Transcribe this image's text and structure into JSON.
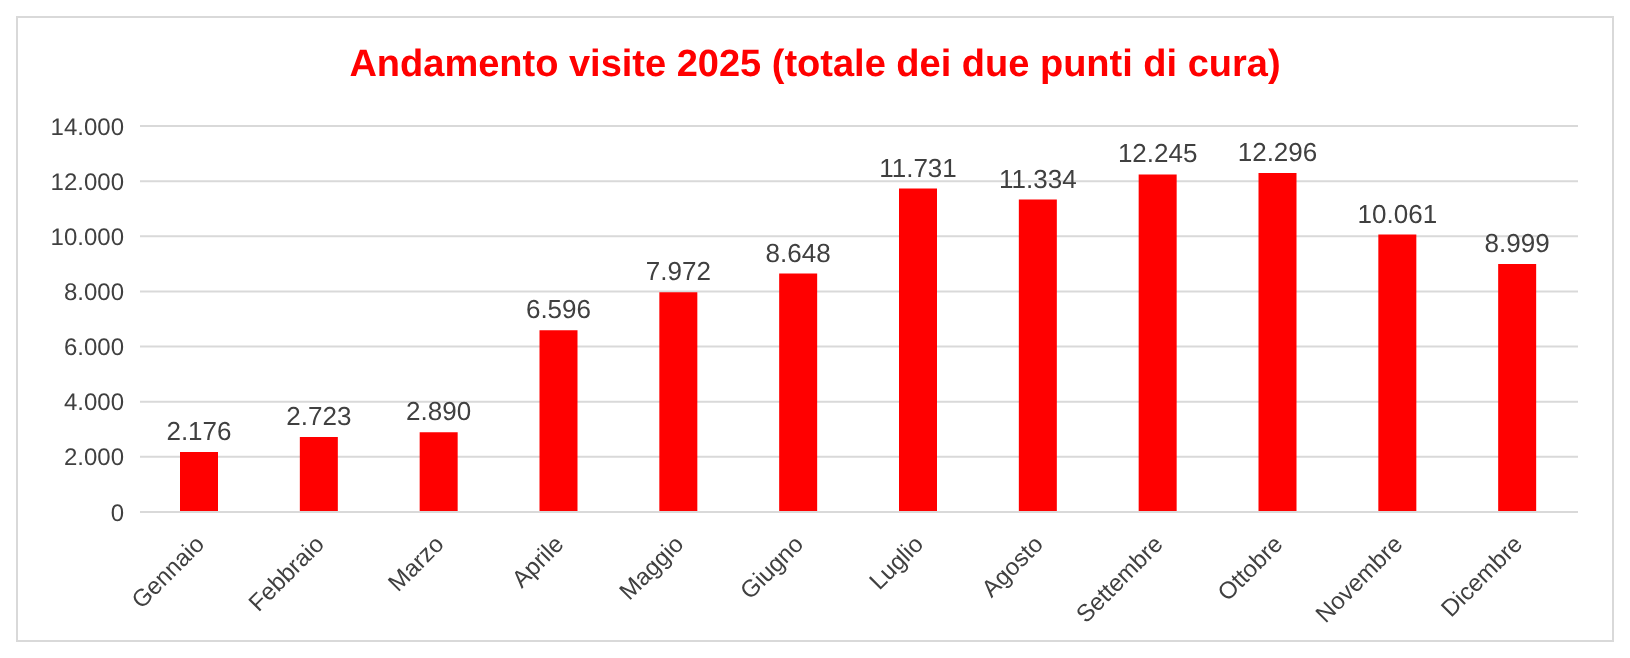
{
  "chart_data": {
    "type": "bar",
    "title": "Andamento visite 2025 (totale dei due punti di cura)",
    "categories": [
      "Gennaio",
      "Febbraio",
      "Marzo",
      "Aprile",
      "Maggio",
      "Giugno",
      "Luglio",
      "Agosto",
      "Settembre",
      "Ottobre",
      "Novembre",
      "Dicembre"
    ],
    "values": [
      2176,
      2723,
      2890,
      6596,
      7972,
      8648,
      11731,
      11334,
      12245,
      12296,
      10061,
      8999
    ],
    "value_labels": [
      "2.176",
      "2.723",
      "2.890",
      "6.596",
      "7.972",
      "8.648",
      "11.731",
      "11.334",
      "12.245",
      "12.296",
      "10.061",
      "8.999"
    ],
    "color": "#ff0000",
    "ylim": [
      0,
      14000
    ],
    "yticks": [
      0,
      {
        "value": 2000,
        "label": "2.000"
      },
      {
        "value": 4000,
        "label": "4.000"
      },
      {
        "value": 6000,
        "label": "6.000"
      },
      {
        "value": 8000,
        "label": "8.000"
      },
      {
        "value": 10000,
        "label": "10.000"
      },
      {
        "value": 12000,
        "label": "12.000"
      },
      {
        "value": 14000,
        "label": "14.000"
      }
    ],
    "grid": "y",
    "legend": false
  }
}
